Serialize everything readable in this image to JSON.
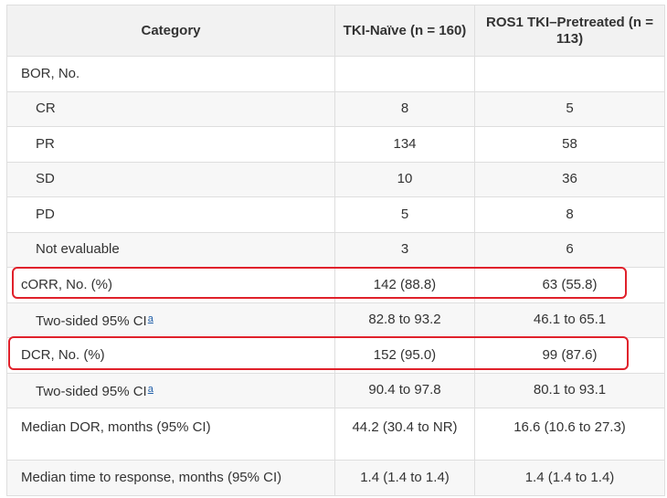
{
  "header": {
    "category": "Category",
    "tki_naive": "TKI-Naïve (n = 160)",
    "pretreated": "ROS1 TKI–Pretreated (n = 113)"
  },
  "rows": [
    {
      "category": "BOR, No.",
      "naive": "",
      "pretreated": ""
    },
    {
      "category": "CR",
      "naive": "8",
      "pretreated": "5"
    },
    {
      "category": "PR",
      "naive": "134",
      "pretreated": "58"
    },
    {
      "category": "SD",
      "naive": "10",
      "pretreated": "36"
    },
    {
      "category": "PD",
      "naive": "5",
      "pretreated": "8"
    },
    {
      "category": "Not evaluable",
      "naive": "3",
      "pretreated": "6"
    },
    {
      "category": "cORR, No. (%)",
      "naive": "142 (88.8)",
      "pretreated": "63 (55.8)"
    },
    {
      "category": "Two-sided 95% CI",
      "footnote": "a",
      "naive": "82.8 to 93.2",
      "pretreated": "46.1 to 65.1"
    },
    {
      "category": "DCR, No. (%)",
      "naive": "152 (95.0)",
      "pretreated": "99 (87.6)"
    },
    {
      "category": "Two-sided 95% CI",
      "footnote": "a",
      "naive": "90.4 to 97.8",
      "pretreated": "80.1 to 93.1"
    },
    {
      "category": "Median DOR, months (95% CI)",
      "naive": "44.2 (30.4 to NR)",
      "pretreated": "16.6 (10.6 to 27.3)"
    },
    {
      "category": "Median time to response, months (95% CI)",
      "naive": "1.4 (1.4 to 1.4)",
      "pretreated": "1.4 (1.4 to 1.4)"
    }
  ],
  "highlight_color": "#e0212b"
}
